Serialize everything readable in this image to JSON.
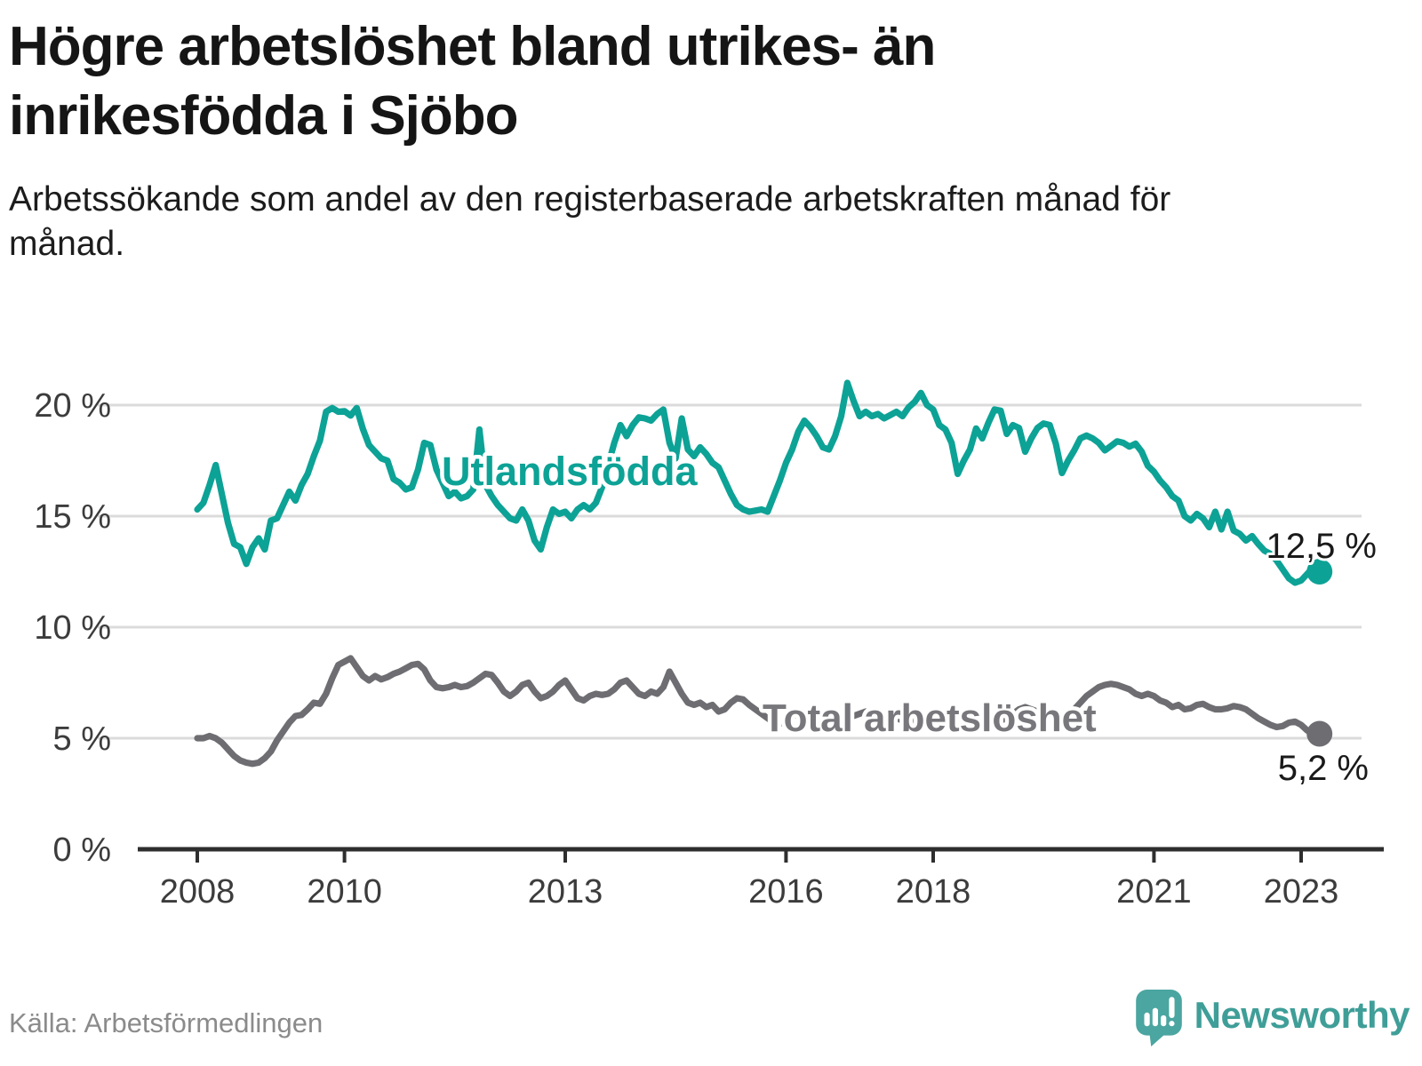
{
  "chart_data": {
    "type": "line",
    "title": "Högre arbetslöshet bland utrikes- än inrikesfödda i Sjöbo",
    "subtitle": "Arbetssökande som andel av den registerbaserade arbetskraften månad för månad.",
    "unit": "%",
    "frequency": "monthly",
    "start": {
      "year": 2008,
      "month": 1
    },
    "end": {
      "year": 2023,
      "month": 4
    },
    "ylim": [
      0,
      22
    ],
    "grid": "horizontal",
    "legend_position": "inline-labels",
    "x_ticks": [
      {
        "year": 2008,
        "label": "2008"
      },
      {
        "year": 2010,
        "label": "2010"
      },
      {
        "year": 2013,
        "label": "2013"
      },
      {
        "year": 2016,
        "label": "2016"
      },
      {
        "year": 2018,
        "label": "2018"
      },
      {
        "year": 2021,
        "label": "2021"
      },
      {
        "year": 2023,
        "label": "2023"
      }
    ],
    "y_ticks": [
      {
        "value": 0,
        "label": "0 %"
      },
      {
        "value": 5,
        "label": "5 %"
      },
      {
        "value": 10,
        "label": "10 %"
      },
      {
        "value": 15,
        "label": "15 %"
      },
      {
        "value": 20,
        "label": "20 %"
      }
    ],
    "series": [
      {
        "name": "Utlandsfödda",
        "color": "#0da296",
        "end_label": "12,5 %",
        "end_value": 12.5,
        "values": [
          15.3,
          15.6,
          16.4,
          17.3,
          16.0,
          14.7,
          13.75,
          13.6,
          12.85,
          13.6,
          14.0,
          13.5,
          14.8,
          14.9,
          15.5,
          16.1,
          15.7,
          16.4,
          16.9,
          17.7,
          18.4,
          19.7,
          19.87,
          19.7,
          19.73,
          19.53,
          19.87,
          18.93,
          18.2,
          17.9,
          17.6,
          17.5,
          16.67,
          16.5,
          16.2,
          16.3,
          17.1,
          18.3,
          18.2,
          17.1,
          16.5,
          15.9,
          16.1,
          15.8,
          15.9,
          16.2,
          18.9,
          16.4,
          15.9,
          15.5,
          15.2,
          14.9,
          14.8,
          15.3,
          14.8,
          13.9,
          13.5,
          14.5,
          15.3,
          15.1,
          15.2,
          14.9,
          15.3,
          15.5,
          15.3,
          15.6,
          16.3,
          17.3,
          18.3,
          19.1,
          18.6,
          19.1,
          19.45,
          19.4,
          19.3,
          19.6,
          19.8,
          18.3,
          17.6,
          19.4,
          18.0,
          17.7,
          18.1,
          17.8,
          17.4,
          17.2,
          16.6,
          16.0,
          15.5,
          15.3,
          15.2,
          15.25,
          15.3,
          15.2,
          15.9,
          16.6,
          17.4,
          18.0,
          18.8,
          19.3,
          19.0,
          18.6,
          18.1,
          18.0,
          18.6,
          19.5,
          21.0,
          20.2,
          19.5,
          19.7,
          19.5,
          19.6,
          19.4,
          19.55,
          19.7,
          19.5,
          19.9,
          20.15,
          20.55,
          20.0,
          19.8,
          19.1,
          18.9,
          18.3,
          16.9,
          17.5,
          18.0,
          18.95,
          18.5,
          19.2,
          19.8,
          19.75,
          18.7,
          19.1,
          18.97,
          17.9,
          18.5,
          18.97,
          19.17,
          19.1,
          18.26,
          16.94,
          17.5,
          17.96,
          18.5,
          18.63,
          18.5,
          18.3,
          17.96,
          18.16,
          18.37,
          18.3,
          18.13,
          18.26,
          17.9,
          17.27,
          17.0,
          16.6,
          16.3,
          15.9,
          15.7,
          15.0,
          14.8,
          15.1,
          14.9,
          14.5,
          15.2,
          14.4,
          15.2,
          14.35,
          14.2,
          13.9,
          14.1,
          13.75,
          13.45,
          13.3,
          13.0,
          12.6,
          12.2,
          12.0,
          12.1,
          12.4,
          12.7,
          12.5
        ]
      },
      {
        "name": "Total arbetslöshet",
        "color": "#6d6d72",
        "end_label": "5,2 %",
        "end_value": 5.2,
        "values": [
          5.0,
          5.0,
          5.1,
          5.0,
          4.8,
          4.5,
          4.2,
          4.0,
          3.9,
          3.85,
          3.9,
          4.1,
          4.4,
          4.9,
          5.3,
          5.7,
          6.0,
          6.05,
          6.3,
          6.6,
          6.55,
          7.0,
          7.7,
          8.3,
          8.45,
          8.6,
          8.2,
          7.8,
          7.6,
          7.8,
          7.65,
          7.75,
          7.9,
          8.0,
          8.15,
          8.3,
          8.35,
          8.1,
          7.6,
          7.3,
          7.25,
          7.3,
          7.4,
          7.3,
          7.35,
          7.5,
          7.7,
          7.9,
          7.85,
          7.5,
          7.1,
          6.9,
          7.1,
          7.4,
          7.5,
          7.1,
          6.8,
          6.9,
          7.1,
          7.4,
          7.6,
          7.2,
          6.8,
          6.7,
          6.9,
          7.0,
          6.95,
          7.0,
          7.2,
          7.5,
          7.6,
          7.3,
          7.0,
          6.9,
          7.1,
          7.0,
          7.3,
          8.0,
          7.5,
          7.0,
          6.6,
          6.5,
          6.6,
          6.4,
          6.5,
          6.2,
          6.3,
          6.6,
          6.8,
          6.75,
          6.5,
          6.3,
          6.1,
          5.9,
          5.7,
          5.65,
          5.9,
          6.0,
          6.1,
          6.0,
          5.9,
          5.8,
          5.7,
          5.8,
          5.9,
          5.8,
          5.9,
          6.0,
          6.1,
          6.2,
          6.1,
          6.0,
          5.9,
          6.0,
          5.9,
          5.8,
          5.7,
          5.8,
          5.9,
          6.0,
          5.9,
          5.8,
          5.7,
          5.6,
          5.5,
          5.6,
          5.5,
          5.4,
          5.5,
          5.6,
          5.7,
          5.8,
          5.9,
          6.1,
          6.3,
          6.4,
          6.3,
          6.2,
          6.0,
          5.8,
          5.7,
          5.8,
          6.0,
          6.3,
          6.6,
          6.9,
          7.1,
          7.3,
          7.4,
          7.45,
          7.4,
          7.3,
          7.2,
          7.0,
          6.9,
          7.0,
          6.9,
          6.7,
          6.6,
          6.4,
          6.5,
          6.3,
          6.35,
          6.5,
          6.55,
          6.4,
          6.3,
          6.3,
          6.35,
          6.45,
          6.4,
          6.3,
          6.1,
          5.9,
          5.75,
          5.6,
          5.5,
          5.55,
          5.7,
          5.75,
          5.6,
          5.35,
          5.3,
          5.2
        ]
      }
    ]
  },
  "footer": {
    "source": "Källa: Arbetsförmedlingen",
    "brand": "Newsworthy"
  },
  "colors": {
    "accent_teal": "#0da296",
    "line_gray": "#6d6d72",
    "gridline": "#dbdbdb",
    "axis": "#2e2e2e",
    "axis_text": "#3c3c3c",
    "title_text": "#151515",
    "source_text": "#8b8b8b",
    "brand_teal": "#3f9e98",
    "brand_icon_teal": "#4ba5a0"
  }
}
